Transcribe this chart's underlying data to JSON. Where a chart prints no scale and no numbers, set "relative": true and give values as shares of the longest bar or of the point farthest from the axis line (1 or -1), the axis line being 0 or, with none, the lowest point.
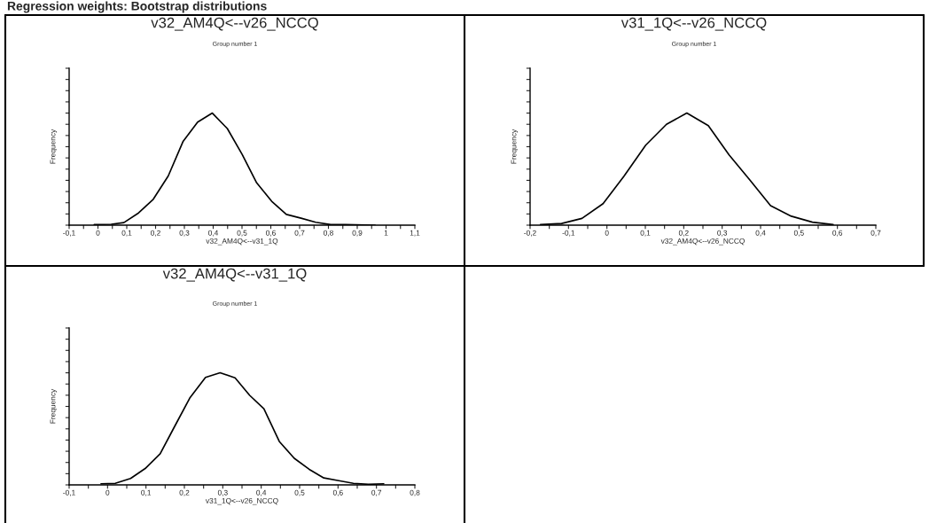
{
  "chart_data": [
    {
      "type": "line",
      "title": "v32_AM4Q<--v26_NCCQ",
      "subtitle": "Group number 1",
      "xlabel": "v32_AM4Q<--v31_1Q",
      "ylabel": "Frequency",
      "relative": true,
      "tick_labels": "x",
      "color": "#000000",
      "marker": "none",
      "line_style": "solid",
      "grid": false,
      "legend": false,
      "annotations": [
        "Regression weights: Bootstrap distributions"
      ],
      "xlim": [
        -0.1,
        1.1
      ],
      "xticks": [
        {
          "value": -0.1,
          "label": "-0,1"
        },
        {
          "value": -0.05,
          "label": null
        },
        0,
        {
          "value": 0.05,
          "label": null
        },
        {
          "value": 0.1,
          "label": "0,1"
        },
        {
          "value": 0.15,
          "label": null
        },
        {
          "value": 0.2,
          "label": "0,2"
        },
        {
          "value": 0.25,
          "label": null
        },
        {
          "value": 0.3,
          "label": "0,3"
        },
        {
          "value": 0.35,
          "label": null
        },
        {
          "value": 0.4,
          "label": "0,4"
        },
        {
          "value": 0.45,
          "label": null
        },
        {
          "value": 0.5,
          "label": "0,5"
        },
        {
          "value": 0.55,
          "label": null
        },
        {
          "value": 0.6,
          "label": "0,6"
        },
        {
          "value": 0.65,
          "label": null
        },
        {
          "value": 0.7,
          "label": "0,7"
        },
        {
          "value": 0.75,
          "label": null
        },
        {
          "value": 0.8,
          "label": "0,8"
        },
        {
          "value": 0.85,
          "label": null
        },
        {
          "value": 0.9,
          "label": "0,9"
        },
        {
          "value": 0.95,
          "label": null
        },
        1,
        {
          "value": 1.05,
          "label": null
        },
        {
          "value": 1.1,
          "label": "1,1"
        }
      ],
      "x": [
        -0.013,
        0.046,
        0.09,
        0.141,
        0.192,
        0.244,
        0.295,
        0.346,
        0.397,
        0.449,
        0.5,
        0.551,
        0.603,
        0.654,
        0.705,
        0.756,
        0.808,
        0.859,
        0.962
      ],
      "values": [
        0.005,
        0.008,
        0.023,
        0.109,
        0.231,
        0.439,
        0.745,
        0.919,
        1,
        0.862,
        0.634,
        0.377,
        0.213,
        0.096,
        0.062,
        0.026,
        0.005,
        0.005,
        0
      ]
    },
    {
      "type": "line",
      "title": "v31_1Q<--v26_NCCQ",
      "subtitle": "Group number 1",
      "xlabel": "v32_AM4Q<--v26_NCCQ",
      "ylabel": "Frequency",
      "relative": true,
      "tick_labels": "x",
      "color": "#000000",
      "marker": "none",
      "line_style": "solid",
      "grid": false,
      "legend": false,
      "xlim": [
        -0.2,
        0.7
      ],
      "xticks": [
        {
          "value": -0.2,
          "label": "-0,2"
        },
        {
          "value": -0.15,
          "label": null
        },
        {
          "value": -0.1,
          "label": "-0,1"
        },
        {
          "value": -0.05,
          "label": null
        },
        0,
        {
          "value": 0.05,
          "label": null
        },
        {
          "value": 0.1,
          "label": "0,1"
        },
        {
          "value": 0.15,
          "label": null
        },
        {
          "value": 0.2,
          "label": "0,2"
        },
        {
          "value": 0.25,
          "label": null
        },
        {
          "value": 0.3,
          "label": "0,3"
        },
        {
          "value": 0.35,
          "label": null
        },
        {
          "value": 0.4,
          "label": "0,4"
        },
        {
          "value": 0.45,
          "label": null
        },
        {
          "value": 0.5,
          "label": "0,5"
        },
        {
          "value": 0.55,
          "label": null
        },
        {
          "value": 0.6,
          "label": "0,6"
        },
        {
          "value": 0.65,
          "label": null
        },
        {
          "value": 0.7,
          "label": "0,7"
        }
      ],
      "x": [
        -0.173,
        -0.118,
        -0.065,
        -0.01,
        0.044,
        0.101,
        0.155,
        0.208,
        0.264,
        0.318,
        0.372,
        0.426,
        0.48,
        0.535,
        0.589
      ],
      "values": [
        0.005,
        0.015,
        0.06,
        0.192,
        0.435,
        0.714,
        0.9,
        1,
        0.888,
        0.627,
        0.403,
        0.174,
        0.08,
        0.027,
        0.005
      ]
    },
    {
      "type": "line",
      "title": "v32_AM4Q<--v31_1Q",
      "subtitle": "Group number 1",
      "xlabel": "v31_1Q<--v26_NCCQ",
      "ylabel": "Frequency",
      "relative": true,
      "tick_labels": "x",
      "color": "#000000",
      "marker": "none",
      "line_style": "solid",
      "grid": false,
      "legend": false,
      "xlim": [
        -0.1,
        0.8
      ],
      "xticks": [
        {
          "value": -0.1,
          "label": "-0,1"
        },
        {
          "value": -0.05,
          "label": null
        },
        0,
        {
          "value": 0.05,
          "label": null
        },
        {
          "value": 0.1,
          "label": "0,1"
        },
        {
          "value": 0.15,
          "label": null
        },
        {
          "value": 0.2,
          "label": "0,2"
        },
        {
          "value": 0.25,
          "label": null
        },
        {
          "value": 0.3,
          "label": "0,3"
        },
        {
          "value": 0.35,
          "label": null
        },
        {
          "value": 0.4,
          "label": "0,4"
        },
        {
          "value": 0.45,
          "label": null
        },
        {
          "value": 0.5,
          "label": "0,5"
        },
        {
          "value": 0.55,
          "label": null
        },
        {
          "value": 0.6,
          "label": "0,6"
        },
        {
          "value": 0.65,
          "label": null
        },
        {
          "value": 0.7,
          "label": "0,7"
        },
        {
          "value": 0.75,
          "label": null
        },
        {
          "value": 0.8,
          "label": "0,8"
        }
      ],
      "x": [
        -0.017,
        0.02,
        0.06,
        0.098,
        0.137,
        0.175,
        0.214,
        0.255,
        0.293,
        0.332,
        0.37,
        0.407,
        0.447,
        0.486,
        0.525,
        0.563,
        0.602,
        0.64,
        0.679,
        0.719
      ],
      "values": [
        0.01,
        0.014,
        0.057,
        0.146,
        0.278,
        0.524,
        0.775,
        0.959,
        1,
        0.955,
        0.799,
        0.679,
        0.388,
        0.237,
        0.139,
        0.062,
        0.038,
        0.014,
        0.005,
        0.01
      ]
    }
  ]
}
